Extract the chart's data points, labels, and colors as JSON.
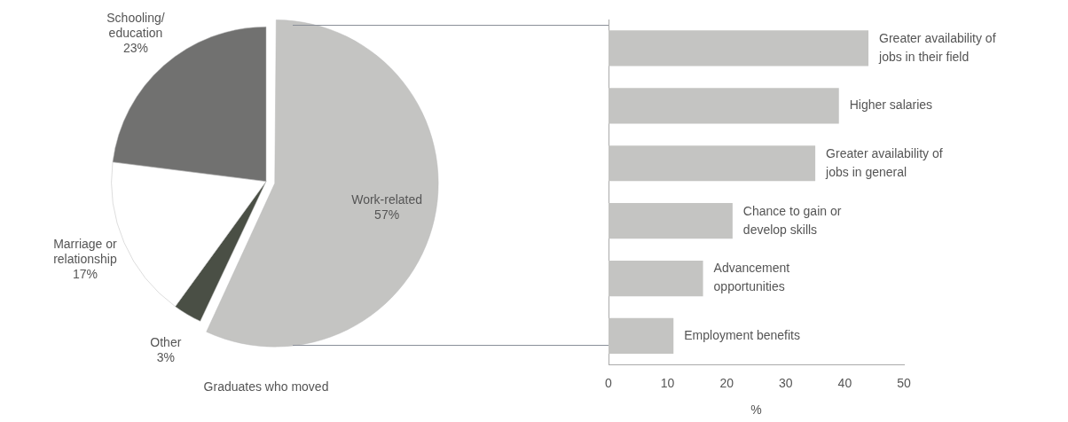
{
  "chart_data": [
    {
      "type": "pie",
      "title": "Graduates who moved",
      "categories": [
        "Work-related",
        "Other",
        "Marriage or relationship",
        "Schooling/ education"
      ],
      "values": [
        57,
        3,
        17,
        23
      ],
      "colors": [
        "#c4c4c2",
        "#4a4f45",
        "#ffffff",
        "#717170"
      ],
      "value_labels": [
        "57%",
        "3%",
        "17%",
        "23%"
      ]
    },
    {
      "type": "bar",
      "orientation": "horizontal",
      "xlabel": "%",
      "categories": [
        "Greater availability of jobs in their field",
        "Higher salaries",
        "Greater availability of jobs in general",
        "Chance to gain or develop skills",
        "Advancement opportunities",
        "Employment benefits"
      ],
      "values": [
        44,
        39,
        35,
        21,
        16,
        11
      ],
      "color": "#c4c4c2",
      "xlim": [
        0,
        50
      ],
      "xticks": [
        0,
        10,
        20,
        30,
        40,
        50
      ],
      "grid": false,
      "legend": false
    }
  ]
}
